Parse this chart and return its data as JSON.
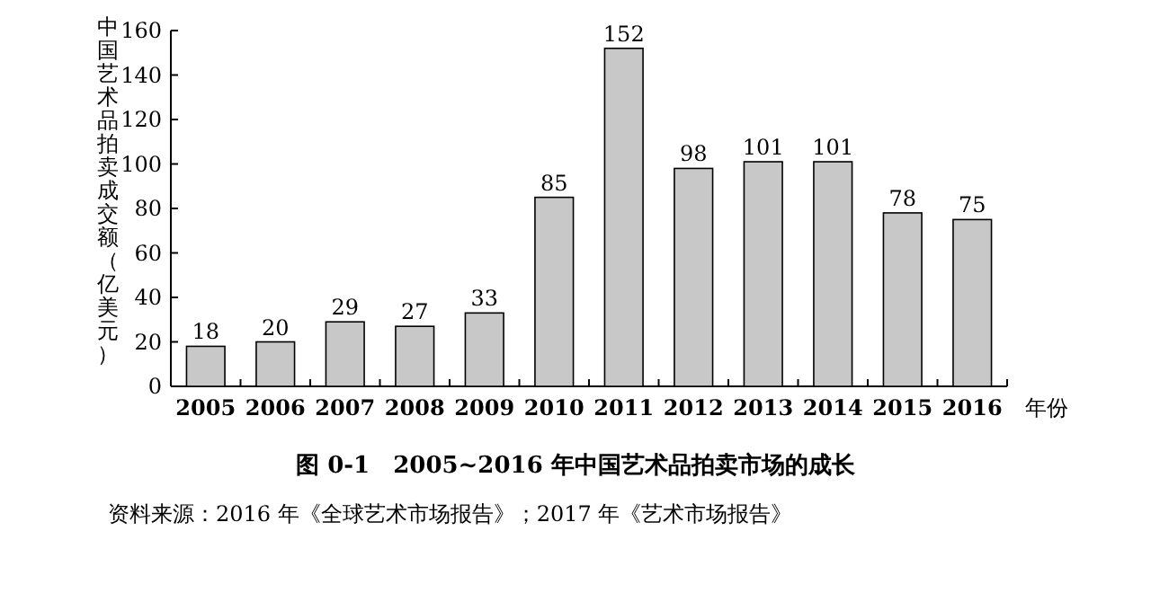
{
  "chart_data": {
    "type": "bar",
    "title": "图 0-1　2005~2016 年中国艺术品拍卖市场的成长",
    "ylabel": "中国艺术品拍卖成交额（亿美元）",
    "xlabel": "年份",
    "categories": [
      "2005",
      "2006",
      "2007",
      "2008",
      "2009",
      "2010",
      "2011",
      "2012",
      "2013",
      "2014",
      "2015",
      "2016"
    ],
    "values": [
      18,
      20,
      29,
      27,
      33,
      85,
      152,
      98,
      101,
      101,
      78,
      75
    ],
    "color": "#c8c8c8",
    "ylim": [
      0,
      160
    ],
    "yticks": [
      0,
      20,
      40,
      60,
      80,
      100,
      120,
      140,
      160
    ],
    "data_labels": true,
    "grid": false,
    "annotations": [
      "资料来源：2016 年《全球艺术市场报告》；2017 年《艺术市场报告》"
    ]
  }
}
